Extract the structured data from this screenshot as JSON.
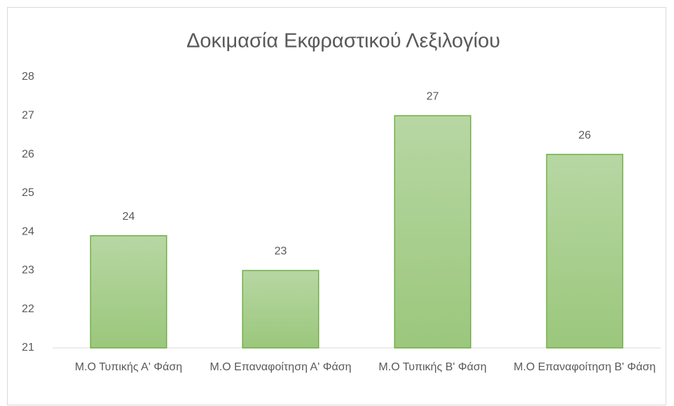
{
  "chart_data": {
    "type": "bar",
    "title": "Δοκιμασία Εκφραστικού Λεξιλογίου",
    "categories": [
      "Μ.Ο Τυπικής Α' Φάση",
      "Μ.Ο Επαναφοίτηση Α' Φάση",
      "Μ.Ο Τυπικής Β' Φάση",
      "Μ.Ο Επαναφοίτηση Β' Φάση"
    ],
    "values": [
      23.9,
      23,
      27,
      26
    ],
    "value_labels": [
      "24",
      "23",
      "27",
      "26"
    ],
    "color": "#a9d18e",
    "ylim": [
      21,
      28
    ],
    "yticks": [
      21,
      22,
      23,
      24,
      25,
      26,
      27,
      28
    ],
    "grid": false
  }
}
